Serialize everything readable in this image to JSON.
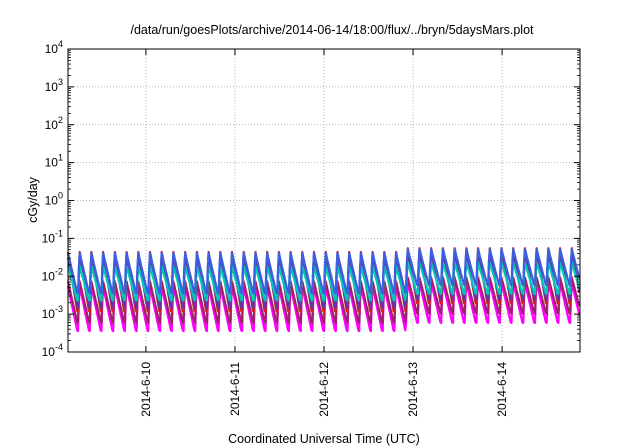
{
  "chart_data": {
    "type": "line",
    "title": "/data/run/goesPlots/archive/2014-06-14/18:00/flux/../bryn/5daysMars.plot",
    "xlabel": "Coordinated Universal Time (UTC)",
    "ylabel": "cGy/day",
    "y_scale": "log",
    "ylim": [
      0.0001,
      10000
    ],
    "xlim": [
      "2014-06-09 03:00",
      "2014-06-14 21:00"
    ],
    "x_tick_labels": [
      "2014-6-10",
      "2014-6-11",
      "2014-6-12",
      "2014-6-13",
      "2014-6-14"
    ],
    "y_ticks": [
      {
        "base": "10",
        "exp": "-4"
      },
      {
        "base": "10",
        "exp": "-3"
      },
      {
        "base": "10",
        "exp": "-2"
      },
      {
        "base": "10",
        "exp": "-1"
      },
      {
        "base": "10",
        "exp": "0"
      },
      {
        "base": "10",
        "exp": "1"
      },
      {
        "base": "10",
        "exp": "2"
      },
      {
        "base": "10",
        "exp": "3"
      },
      {
        "base": "10",
        "exp": "4"
      }
    ],
    "grid": true,
    "oscillation_cycles_per_day": 7.6,
    "series": [
      {
        "color": "#ff00ff",
        "low_before_day4": 0.0003,
        "low_after_day4": 0.0005,
        "high": 0.006
      },
      {
        "color": "#a0206e",
        "low_before_day4": 0.0005,
        "low_after_day4": 0.0009,
        "high": 0.008
      },
      {
        "color": "#d62020",
        "low_before_day4": 0.0009,
        "low_after_day4": 0.0015,
        "high": 0.05
      },
      {
        "color": "#7030a0",
        "low_before_day4": 0.0012,
        "low_after_day4": 0.002,
        "high": 0.035
      },
      {
        "color": "#00c8b4",
        "low_before_day4": 0.002,
        "low_after_day4": 0.003,
        "high": 0.02
      },
      {
        "color": "#3a5fe0",
        "low_before_day4": 0.003,
        "low_after_day4": 0.005,
        "high": 0.045
      }
    ]
  }
}
